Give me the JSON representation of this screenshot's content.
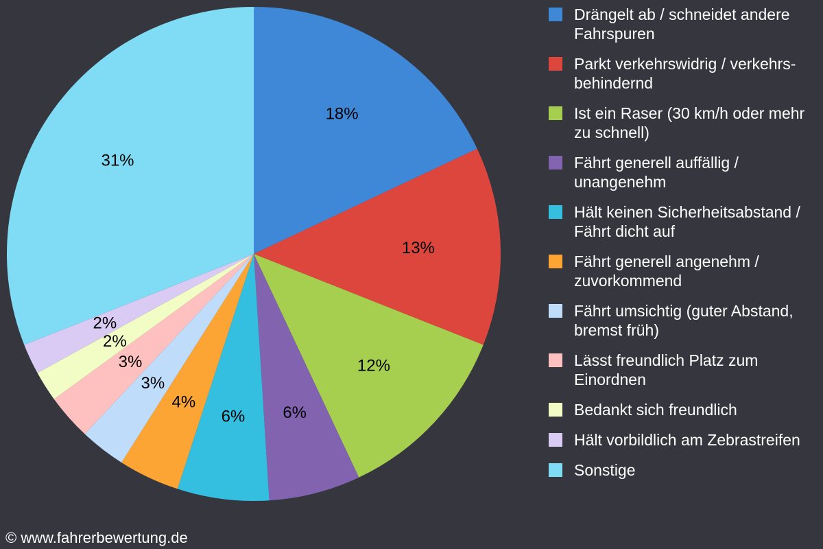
{
  "chart_data": {
    "type": "pie",
    "categories": [
      "Drängelt ab / schneidet andere Fahrspuren",
      "Parkt verkehrswidrig / verkehrs-behindernd",
      "Ist ein Raser (30 km/h oder mehr zu schnell)",
      "Fährt generell auffällig / unangenehm",
      "Hält keinen Sicherheitsabstand / Fährt dicht auf",
      "Fährt generell angenehm / zuvorkommend",
      "Fährt umsichtig (guter Abstand, bremst früh)",
      "Lässt freundlich Platz zum Einordnen",
      "Bedankt sich freundlich",
      "Hält vorbildlich am Zebrastreifen",
      "Sonstige"
    ],
    "values": [
      18,
      13,
      12,
      6,
      6,
      4,
      3,
      3,
      2,
      2,
      31
    ],
    "value_labels": [
      "18%",
      "13%",
      "12%",
      "6%",
      "6%",
      "4%",
      "3%",
      "3%",
      "2%",
      "2%",
      "31%"
    ],
    "colors": [
      "#3f88d8",
      "#dc463c",
      "#a6cf50",
      "#8263b0",
      "#34bee0",
      "#fda534",
      "#bfdcfb",
      "#fec1bf",
      "#f2fdc6",
      "#dacbf4",
      "#80dcf4"
    ],
    "legend": "right",
    "source": "© www.fahrerbewertung.de"
  }
}
